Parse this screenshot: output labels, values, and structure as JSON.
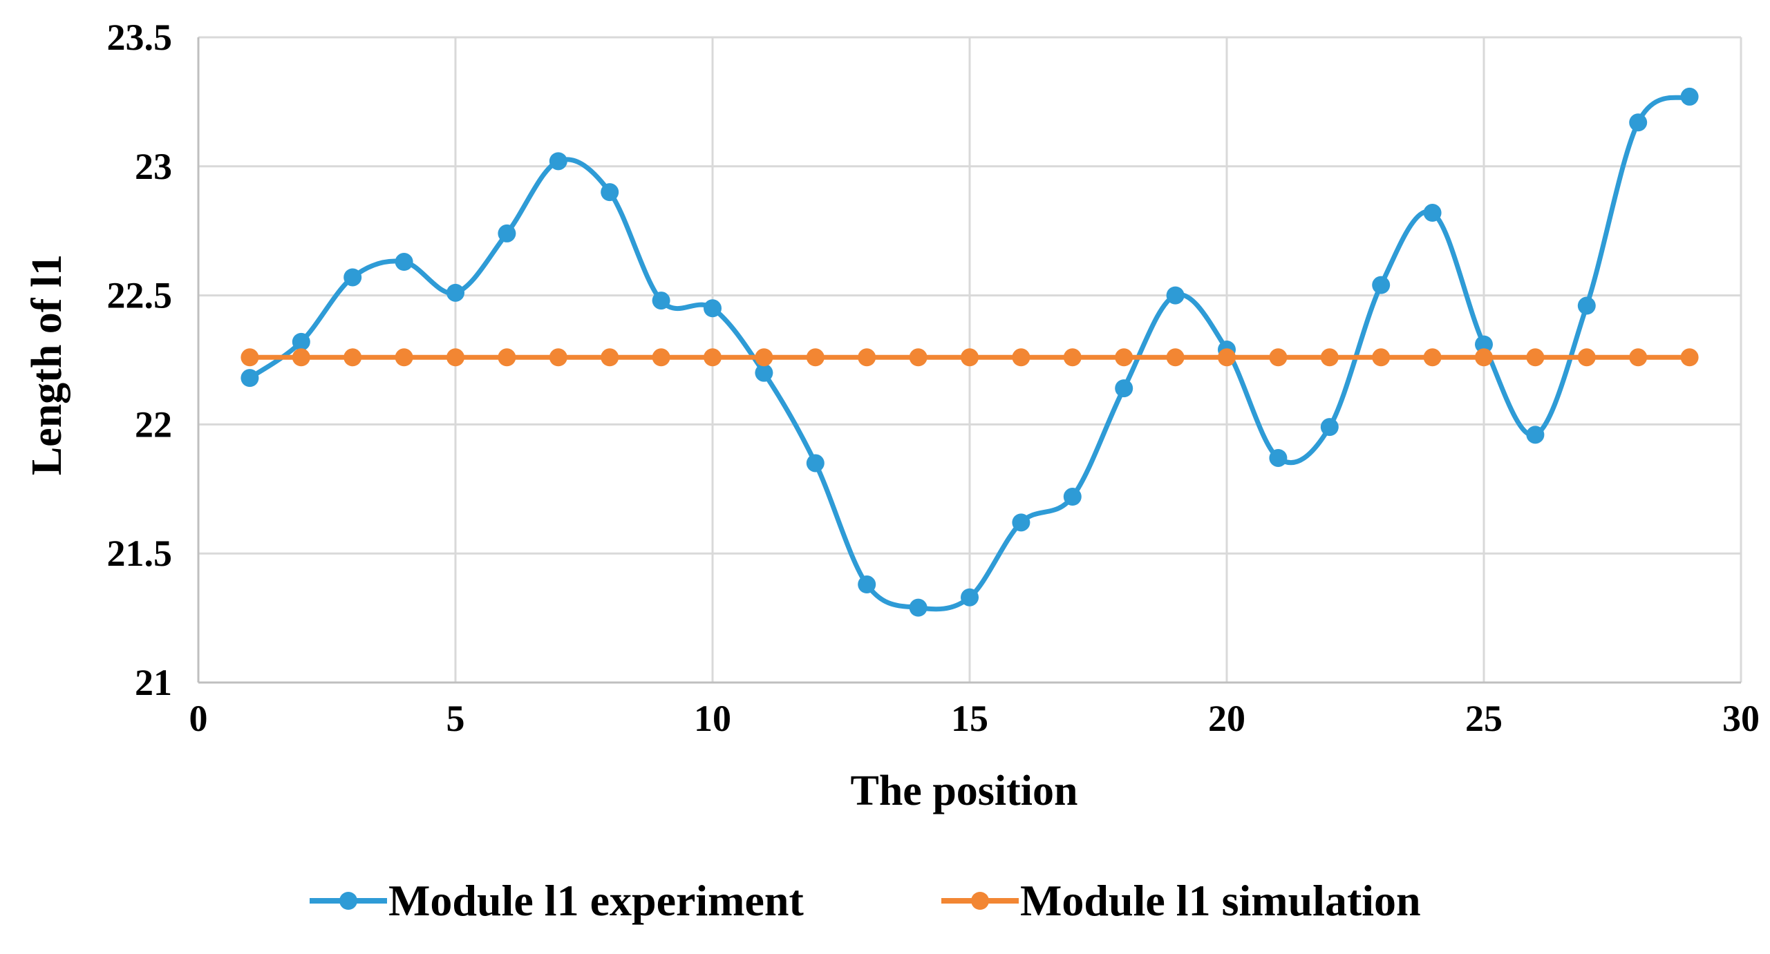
{
  "chart_data": {
    "type": "line",
    "xlabel": "The position",
    "ylabel": "Length of l1",
    "xlim": [
      0,
      30
    ],
    "ylim": [
      21,
      23.5
    ],
    "x_ticks": [
      "0",
      "5",
      "10",
      "15",
      "20",
      "25",
      "30"
    ],
    "y_ticks": [
      "21",
      "21.5",
      "22",
      "22.5",
      "23",
      "23.5"
    ],
    "grid": true,
    "legend_position": "bottom",
    "series": [
      {
        "name": "Module l1 experiment",
        "color": "#2E9BD6",
        "smooth": true,
        "x": [
          1,
          2,
          3,
          4,
          5,
          6,
          7,
          8,
          9,
          10,
          11,
          12,
          13,
          14,
          15,
          16,
          17,
          18,
          19,
          20,
          21,
          22,
          23,
          24,
          25,
          26,
          27,
          28,
          29
        ],
        "values": [
          22.18,
          22.32,
          22.57,
          22.63,
          22.51,
          22.74,
          23.02,
          22.9,
          22.48,
          22.45,
          22.2,
          21.85,
          21.38,
          21.29,
          21.33,
          21.62,
          21.72,
          22.14,
          22.5,
          22.29,
          21.87,
          21.99,
          22.54,
          22.82,
          22.31,
          21.96,
          22.46,
          23.17,
          23.27
        ]
      },
      {
        "name": "Module l1 simulation",
        "color": "#F28633",
        "smooth": false,
        "x": [
          1,
          2,
          3,
          4,
          5,
          6,
          7,
          8,
          9,
          10,
          11,
          12,
          13,
          14,
          15,
          16,
          17,
          18,
          19,
          20,
          21,
          22,
          23,
          24,
          25,
          26,
          27,
          28,
          29
        ],
        "values": [
          22.26,
          22.26,
          22.26,
          22.26,
          22.26,
          22.26,
          22.26,
          22.26,
          22.26,
          22.26,
          22.26,
          22.26,
          22.26,
          22.26,
          22.26,
          22.26,
          22.26,
          22.26,
          22.26,
          22.26,
          22.26,
          22.26,
          22.26,
          22.26,
          22.26,
          22.26,
          22.26,
          22.26,
          22.26
        ]
      }
    ]
  }
}
